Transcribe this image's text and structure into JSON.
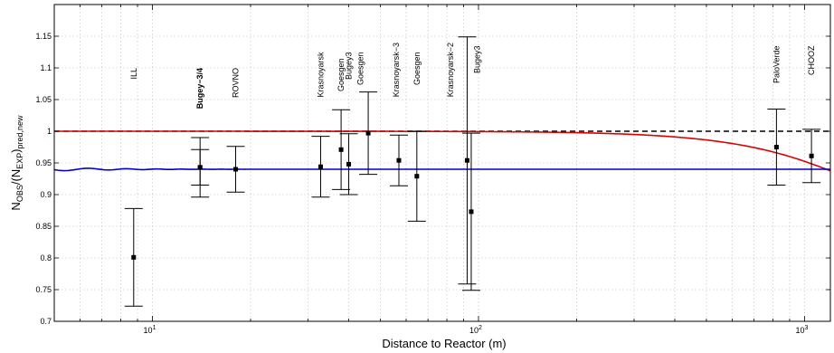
{
  "chart_data": {
    "type": "scatter",
    "xscale": "log",
    "xlim": [
      5,
      1200
    ],
    "ylim": [
      0.7,
      1.2
    ],
    "xlabel": "Distance to Reactor (m)",
    "ylabel_main": "N",
    "ylabel_sub1": "OBS",
    "ylabel_mid": "/(N",
    "ylabel_sub2": "EXP",
    "ylabel_close": ")",
    "ylabel_sub3": "pred,new",
    "grid": true,
    "yticks": [
      {
        "value": 0.7,
        "label": "0.7"
      },
      {
        "value": 0.75,
        "label": "0.75"
      },
      {
        "value": 0.8,
        "label": "0.8"
      },
      {
        "value": 0.85,
        "label": "0.85"
      },
      {
        "value": 0.9,
        "label": "0.9"
      },
      {
        "value": 0.95,
        "label": "0.95"
      },
      {
        "value": 1.0,
        "label": "1"
      },
      {
        "value": 1.05,
        "label": "1.05"
      },
      {
        "value": 1.1,
        "label": "1.1"
      },
      {
        "value": 1.15,
        "label": "1.15"
      }
    ],
    "xticks": [
      {
        "value": 10,
        "base": "10",
        "exp": "1"
      },
      {
        "value": 100,
        "base": "10",
        "exp": "2"
      },
      {
        "value": 1000,
        "base": "10",
        "exp": "3"
      }
    ],
    "points": [
      {
        "x": 8.76,
        "y": 0.801,
        "err_low": 0.077,
        "err_high": 0.077
      },
      {
        "x": 14.0,
        "y": 0.943,
        "err_low": 0.028,
        "err_high": 0.028
      },
      {
        "x": 14.0,
        "y": 0.943,
        "err_low": 0.047,
        "err_high": 0.047
      },
      {
        "x": 18.0,
        "y": 0.94,
        "err_low": 0.036,
        "err_high": 0.036
      },
      {
        "x": 32.8,
        "y": 0.944,
        "err_low": 0.048,
        "err_high": 0.048
      },
      {
        "x": 37.9,
        "y": 0.971,
        "err_low": 0.063,
        "err_high": 0.063
      },
      {
        "x": 40.0,
        "y": 0.948,
        "err_low": 0.048,
        "err_high": 0.048
      },
      {
        "x": 45.9,
        "y": 0.997,
        "err_low": 0.065,
        "err_high": 0.065
      },
      {
        "x": 57.0,
        "y": 0.954,
        "err_low": 0.04,
        "err_high": 0.04
      },
      {
        "x": 64.7,
        "y": 0.929,
        "err_low": 0.071,
        "err_high": 0.071
      },
      {
        "x": 92.3,
        "y": 0.954,
        "err_low": 0.195,
        "err_high": 0.195
      },
      {
        "x": 95.0,
        "y": 0.873,
        "err_low": 0.124,
        "err_high": 0.124
      },
      {
        "x": 820,
        "y": 0.975,
        "err_low": 0.06,
        "err_high": 0.06
      },
      {
        "x": 1050,
        "y": 0.961,
        "err_low": 0.042,
        "err_high": 0.042
      }
    ],
    "labels": [
      {
        "text": "ILL",
        "x": 8.76,
        "top": 1.1
      },
      {
        "text": "Bugey−3/4",
        "x": 14.0,
        "top": 1.1,
        "bold": true
      },
      {
        "text": "ROVNO",
        "x": 18.0,
        "top": 1.1
      },
      {
        "text": "Krasnoyarsk",
        "x": 32.8,
        "top": 1.125
      },
      {
        "text": "Goesgen",
        "x": 37.9,
        "top": 1.115
      },
      {
        "text": "Bugey3",
        "x": 40.0,
        "top": 1.125
      },
      {
        "text": "Goesgen",
        "x": 43.5,
        "top": 1.125
      },
      {
        "text": "Krasnoyarsk−3",
        "x": 56.0,
        "top": 1.14
      },
      {
        "text": "Goesgen",
        "x": 64.7,
        "top": 1.125
      },
      {
        "text": "Krasnoyarsk−2",
        "x": 82.0,
        "top": 1.14
      },
      {
        "text": "Bugey3",
        "x": 99.0,
        "top": 1.135
      },
      {
        "text": "PaloVerde",
        "x": 820,
        "top": 1.135
      },
      {
        "text": "CHOOZ",
        "x": 1050,
        "top": 1.135
      }
    ],
    "lines": [
      {
        "name": "",
        "color": "#000000",
        "style": "dashed",
        "kind": "no-osc"
      },
      {
        "name": "",
        "color": "#dd0000",
        "style": "solid",
        "kind": "three-nu"
      },
      {
        "name": "",
        "color": "#0000cc",
        "style": "solid",
        "kind": "fast-osc",
        "level": 0.94
      }
    ]
  }
}
